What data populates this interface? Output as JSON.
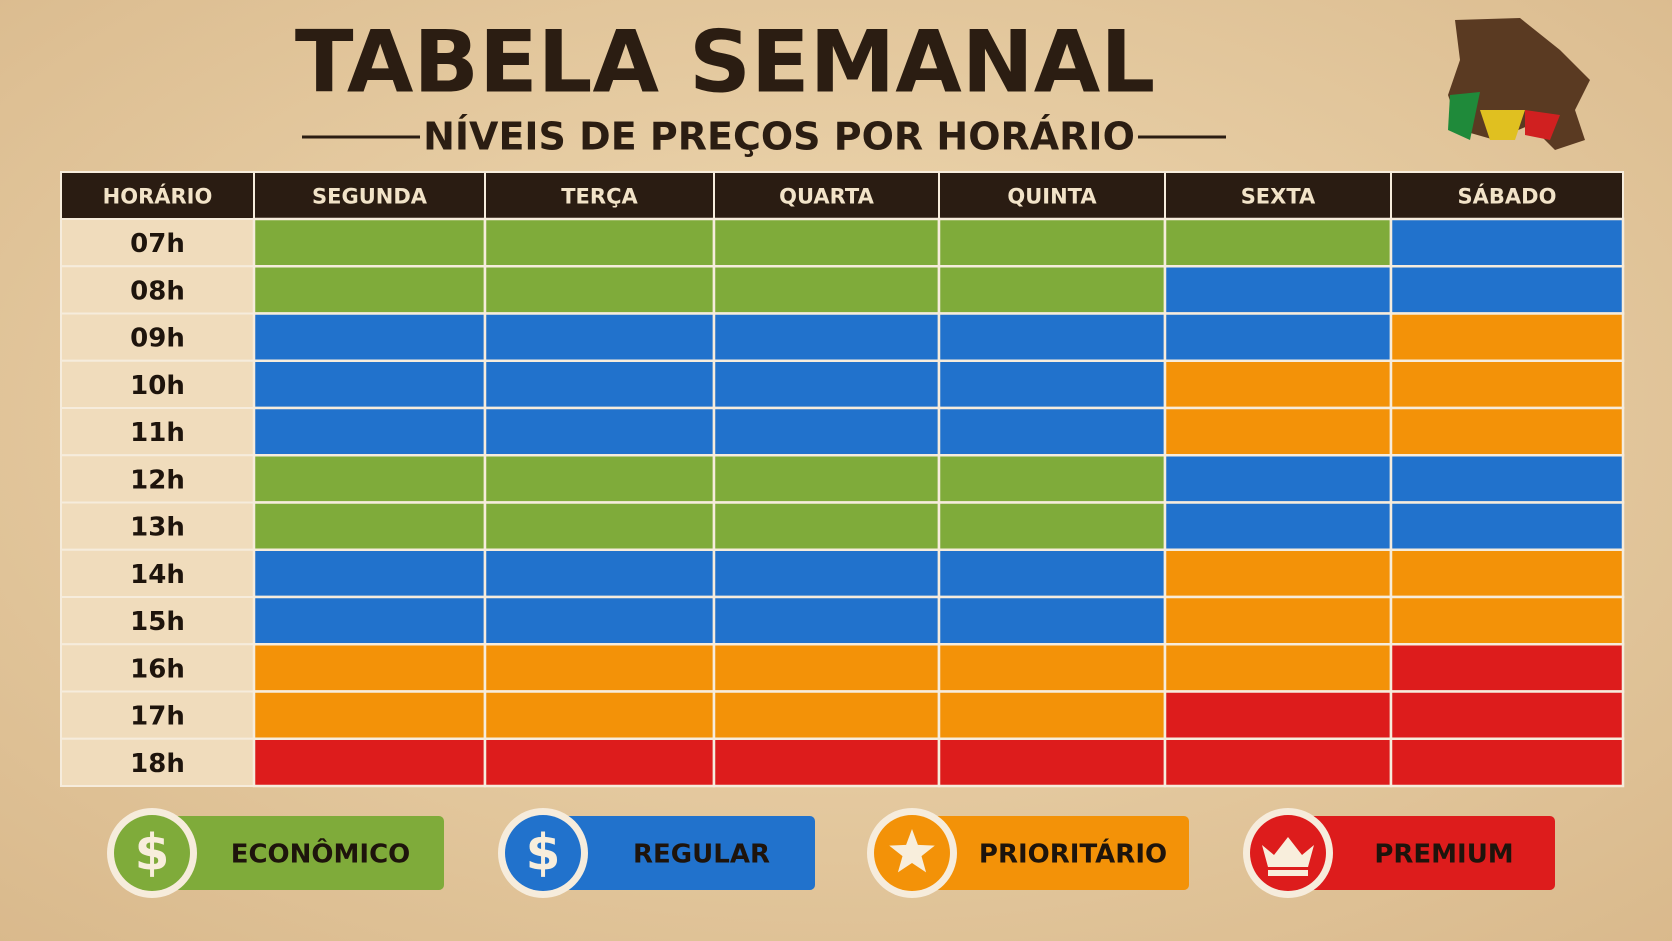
{
  "title": "TABELA SEMANAL",
  "subtitle": "NÍVEIS DE PREÇOS POR HORÁRIO",
  "table": {
    "columns": [
      "HORÁRIO",
      "SEGUNDA",
      "TERÇA",
      "QUARTA",
      "QUINTA",
      "SEXTA",
      "SÁBADO"
    ],
    "rows": [
      {
        "hour": "07h",
        "levels": [
          0,
          0,
          0,
          0,
          0,
          1
        ]
      },
      {
        "hour": "08h",
        "levels": [
          0,
          0,
          0,
          0,
          1,
          1
        ]
      },
      {
        "hour": "09h",
        "levels": [
          1,
          1,
          1,
          1,
          1,
          2
        ]
      },
      {
        "hour": "10h",
        "levels": [
          1,
          1,
          1,
          1,
          2,
          2
        ]
      },
      {
        "hour": "11h",
        "levels": [
          1,
          1,
          1,
          1,
          2,
          2
        ]
      },
      {
        "hour": "12h",
        "levels": [
          0,
          0,
          0,
          0,
          1,
          1
        ]
      },
      {
        "hour": "13h",
        "levels": [
          0,
          0,
          0,
          0,
          1,
          1
        ]
      },
      {
        "hour": "14h",
        "levels": [
          1,
          1,
          1,
          1,
          2,
          2
        ]
      },
      {
        "hour": "15h",
        "levels": [
          1,
          1,
          1,
          1,
          2,
          2
        ]
      },
      {
        "hour": "16h",
        "levels": [
          2,
          2,
          2,
          2,
          2,
          3
        ]
      },
      {
        "hour": "17h",
        "levels": [
          2,
          2,
          2,
          2,
          3,
          3
        ]
      },
      {
        "hour": "18h",
        "levels": [
          3,
          3,
          3,
          3,
          3,
          3
        ]
      }
    ]
  },
  "legend": [
    {
      "label": "ECONÔMICO",
      "color": "#7fab3a",
      "icon": "$"
    },
    {
      "label": "REGULAR",
      "color": "#2172cc",
      "icon": "$"
    },
    {
      "label": "PRIORITÁRIO",
      "color": "#f39208",
      "icon": "star"
    },
    {
      "label": "PREMIUM",
      "color": "#dd1c1c",
      "icon": "crown"
    }
  ]
}
